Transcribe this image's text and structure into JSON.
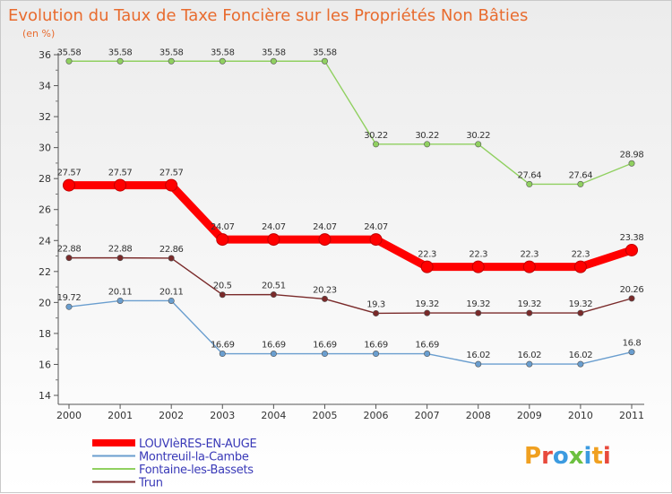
{
  "chart_data": {
    "type": "line",
    "title": "Evolution du Taux de Taxe Foncière sur les Propriétés Non Bâties",
    "subtitle": "(en %)",
    "x": [
      "2000",
      "2001",
      "2002",
      "2003",
      "2004",
      "2005",
      "2006",
      "2007",
      "2008",
      "2009",
      "2010",
      "2011"
    ],
    "ylim": [
      14,
      36
    ],
    "yticks": [
      14,
      16,
      18,
      20,
      22,
      24,
      26,
      28,
      30,
      32,
      34,
      36
    ],
    "grid": false,
    "legend_position": "bottom-left",
    "series": [
      {
        "name": "LOUVIèRES-EN-AUGE",
        "color": "#ff0000",
        "values": [
          27.57,
          27.57,
          27.57,
          24.07,
          24.07,
          24.07,
          24.07,
          22.3,
          22.3,
          22.3,
          22.3,
          23.38
        ],
        "labels": [
          "27.57",
          "27.57",
          "27.57",
          "24.07",
          "24.07",
          "24.07",
          "24.07",
          "22.3",
          "22.3",
          "22.3",
          "22.3",
          "23.38"
        ]
      },
      {
        "name": "Montreuil-la-Cambe",
        "color": "#6a9ecf",
        "values": [
          19.72,
          20.11,
          20.11,
          16.69,
          16.69,
          16.69,
          16.69,
          16.69,
          16.02,
          16.02,
          16.02,
          16.8
        ],
        "labels": [
          "19.72",
          "20.11",
          "20.11",
          "16.69",
          "16.69",
          "16.69",
          "16.69",
          "16.69",
          "16.02",
          "16.02",
          "16.02",
          "16.8"
        ]
      },
      {
        "name": "Fontaine-les-Bassets",
        "color": "#90d060",
        "values": [
          35.58,
          35.58,
          35.58,
          35.58,
          35.58,
          35.58,
          30.22,
          30.22,
          30.22,
          27.64,
          27.64,
          28.98
        ],
        "labels": [
          "35.58",
          "35.58",
          "35.58",
          "35.58",
          "35.58",
          "35.58",
          "30.22",
          "30.22",
          "30.22",
          "27.64",
          "27.64",
          "28.98"
        ]
      },
      {
        "name": "Trun",
        "color": "#7a2a2a",
        "values": [
          22.88,
          22.88,
          22.86,
          20.5,
          20.51,
          20.23,
          19.3,
          19.32,
          19.32,
          19.32,
          19.32,
          20.26
        ],
        "labels": [
          "22.88",
          "22.88",
          "22.86",
          "20.5",
          "20.51",
          "20.23",
          "19.3",
          "19.32",
          "19.32",
          "19.32",
          "19.32",
          "20.26"
        ]
      }
    ]
  },
  "logo": {
    "text": "Proxiti",
    "letter_colors": [
      "#f0a020",
      "#e84a3c",
      "#3c9be0",
      "#6cc040",
      "#3c9be0",
      "#f0a020",
      "#e84a3c"
    ]
  }
}
